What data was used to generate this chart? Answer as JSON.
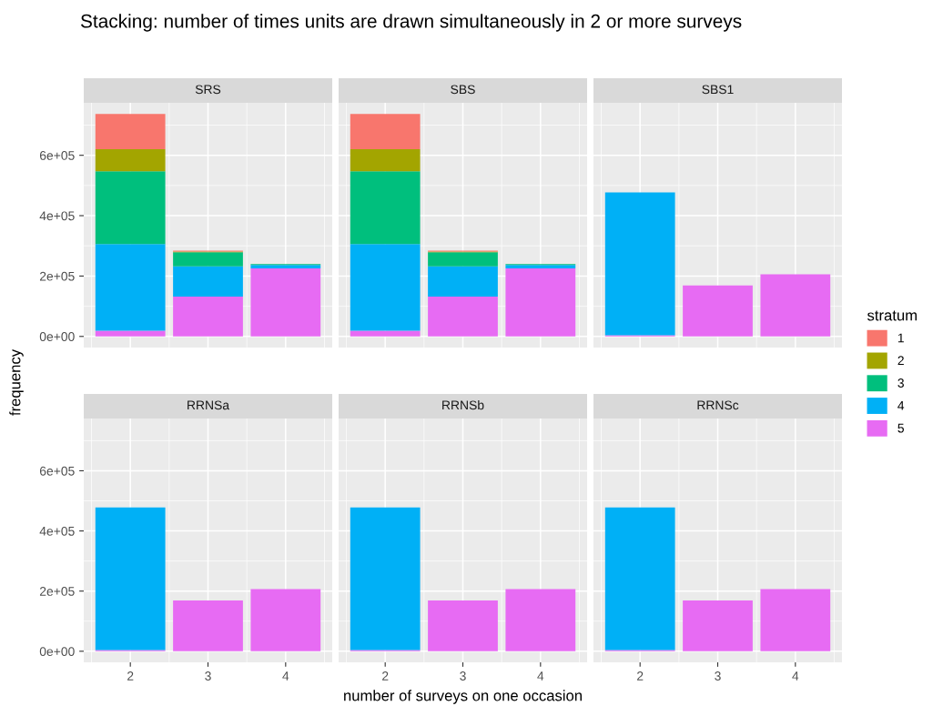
{
  "chart_data": [
    {
      "type": "bar",
      "title": "SRS",
      "annotations": [
        "Stacking: number of times units are drawn simultaneously in 2 or more surveys"
      ],
      "ylabel": "frequency",
      "categories": [
        "2",
        "3",
        "4"
      ],
      "stacked": true,
      "grid": true,
      "tick_labels": "y",
      "legend": "right",
      "legend_title": "stratum",
      "ylim": [
        -36850,
        773850
      ],
      "yticks": [
        {
          "value": 0,
          "label": "0e+00"
        },
        {
          "value": 200000,
          "label": "2e+05"
        },
        {
          "value": 400000,
          "label": "4e+05"
        },
        {
          "value": 600000,
          "label": "6e+05"
        }
      ],
      "series": [
        {
          "name": "5",
          "color": "#e76bf3",
          "values": [
            19000,
            132000,
            225000
          ]
        },
        {
          "name": "4",
          "color": "#00b0f6",
          "values": [
            287000,
            100000,
            12000
          ]
        },
        {
          "name": "3",
          "color": "#00bf7d",
          "values": [
            241000,
            47000,
            3000
          ]
        },
        {
          "name": "2",
          "color": "#a3a500",
          "values": [
            73000,
            2000,
            0
          ]
        },
        {
          "name": "1",
          "color": "#f8766d",
          "values": [
            117000,
            3000,
            0
          ]
        }
      ]
    },
    {
      "type": "bar",
      "title": "SBS",
      "categories": [
        "2",
        "3",
        "4"
      ],
      "stacked": true,
      "grid": true,
      "tick_labels": false,
      "ylim": [
        -36850,
        773850
      ],
      "series": [
        {
          "color": "#e76bf3",
          "values": [
            19000,
            132000,
            225000
          ]
        },
        {
          "color": "#00b0f6",
          "values": [
            287000,
            100000,
            12000
          ]
        },
        {
          "color": "#00bf7d",
          "values": [
            241000,
            47000,
            3000
          ]
        },
        {
          "color": "#a3a500",
          "values": [
            73000,
            2000,
            0
          ]
        },
        {
          "color": "#f8766d",
          "values": [
            117000,
            3000,
            0
          ]
        }
      ]
    },
    {
      "type": "bar",
      "title": "SBS1",
      "categories": [
        "2",
        "3",
        "4"
      ],
      "stacked": true,
      "grid": true,
      "tick_labels": false,
      "ylim": [
        -36850,
        773850
      ],
      "series": [
        {
          "color": "#e76bf3",
          "values": [
            4000,
            169000,
            206000
          ]
        },
        {
          "color": "#00b0f6",
          "values": [
            473000,
            0,
            0
          ]
        }
      ]
    },
    {
      "type": "bar",
      "title": "RRNSa",
      "categories": [
        "2",
        "3",
        "4"
      ],
      "stacked": true,
      "grid": true,
      "ylim": [
        -36850,
        773850
      ],
      "yticks": [
        {
          "value": 0,
          "label": "0e+00"
        },
        {
          "value": 200000,
          "label": "2e+05"
        },
        {
          "value": 400000,
          "label": "4e+05"
        },
        {
          "value": 600000,
          "label": "6e+05"
        }
      ],
      "series": [
        {
          "color": "#e76bf3",
          "values": [
            4000,
            169000,
            207000
          ]
        },
        {
          "color": "#00b0f6",
          "values": [
            474000,
            0,
            0
          ]
        }
      ]
    },
    {
      "type": "bar",
      "title": "RRNSb",
      "xlabel": "number of surveys on one occasion",
      "categories": [
        "2",
        "3",
        "4"
      ],
      "stacked": true,
      "grid": true,
      "tick_labels": "x",
      "ylim": [
        -36850,
        773850
      ],
      "series": [
        {
          "color": "#e76bf3",
          "values": [
            4000,
            169000,
            207000
          ]
        },
        {
          "color": "#00b0f6",
          "values": [
            474000,
            0,
            0
          ]
        }
      ]
    },
    {
      "type": "bar",
      "title": "RRNSc",
      "categories": [
        "2",
        "3",
        "4"
      ],
      "stacked": true,
      "grid": true,
      "tick_labels": "x",
      "ylim": [
        -36850,
        773850
      ],
      "series": [
        {
          "color": "#e76bf3",
          "values": [
            4000,
            169000,
            207000
          ]
        },
        {
          "color": "#00b0f6",
          "values": [
            474000,
            0,
            0
          ]
        }
      ]
    }
  ]
}
